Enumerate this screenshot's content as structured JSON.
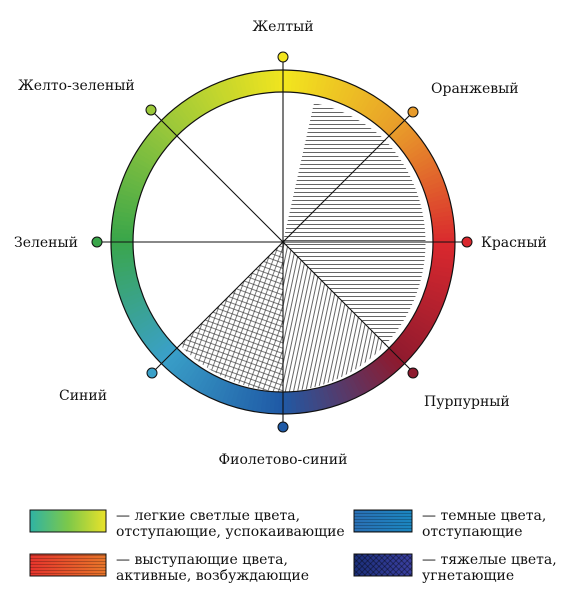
{
  "wheel": {
    "labels": {
      "yellow": "Желтый",
      "orange": "Оранжевый",
      "red": "Красный",
      "purple": "Пурпурный",
      "violet_blue": "Фиолетово-синий",
      "blue": "Синий",
      "green": "Зеленый",
      "yellow_green": "Желто-зеленый"
    },
    "colors": {
      "yellow": "#f2e51e",
      "orange": "#e89b2a",
      "red": "#d9282e",
      "purple": "#8e1a2e",
      "violet_blue": "#1f5aa6",
      "blue": "#3aa0c8",
      "green": "#3aa64a",
      "yellow_green": "#9bc83a"
    }
  },
  "legend": [
    {
      "line1": "— легкие светлые цвета,",
      "line2": "отступающие, успокаивающие"
    },
    {
      "line1": "— темные цвета,",
      "line2": "отступающие"
    },
    {
      "line1": "— выступающие цвета,",
      "line2": "активные, возбуждающие"
    },
    {
      "line1": "— тяжелые цвета,",
      "line2": "угнетающие"
    }
  ]
}
